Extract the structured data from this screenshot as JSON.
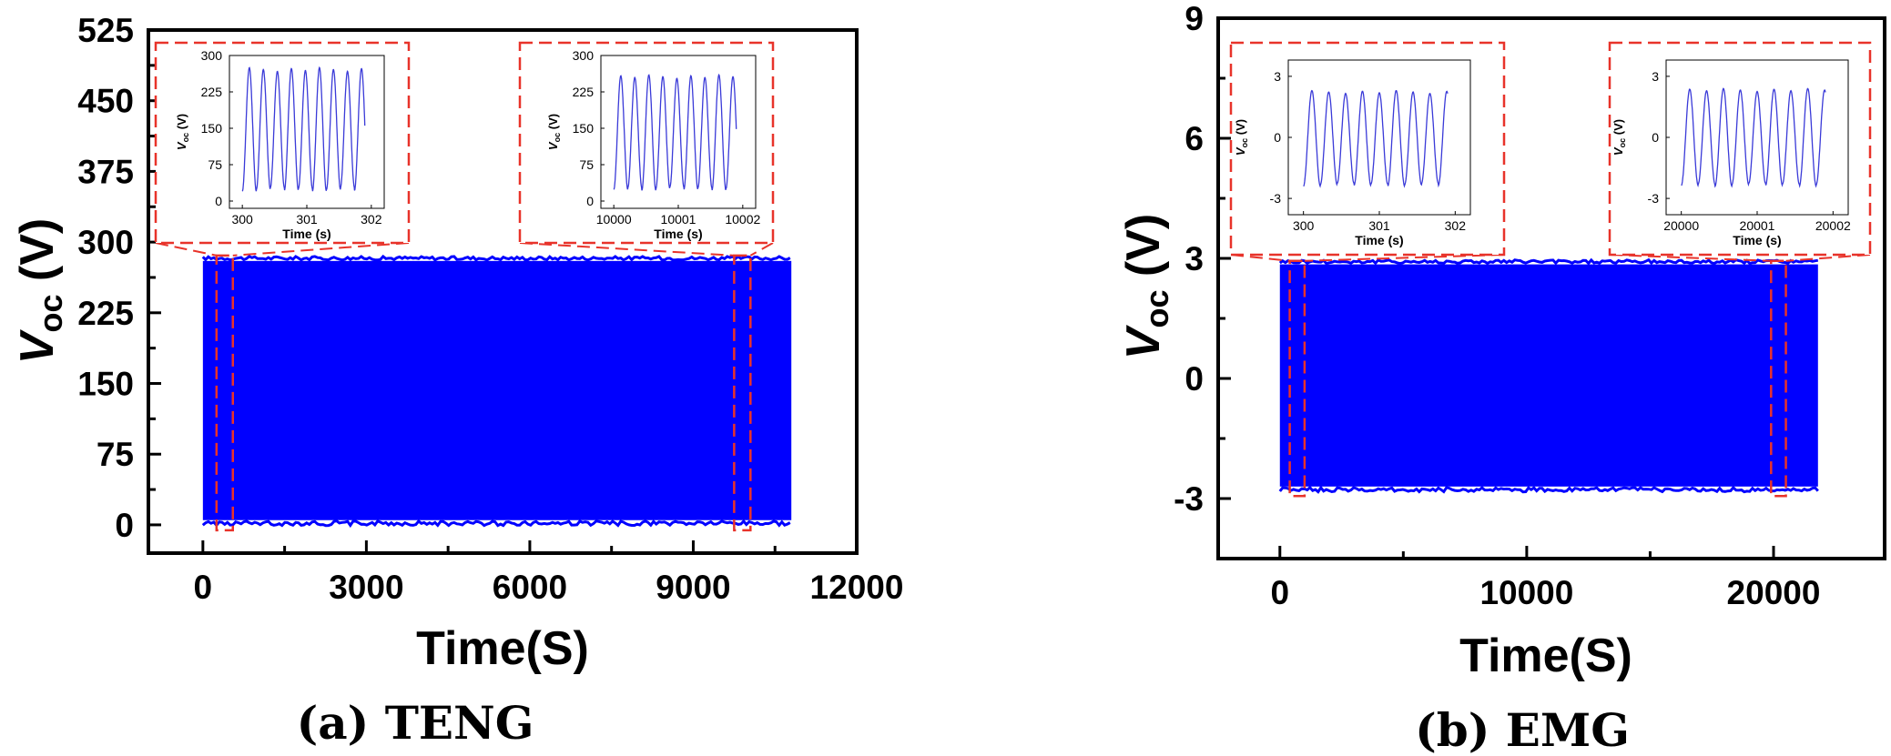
{
  "colors": {
    "signal": "#0000ff",
    "inset_line": "#3a3ad8",
    "zoom_box": "#e8332a",
    "axis": "#000000"
  },
  "chart_data": [
    {
      "type": "line",
      "panel": "a",
      "caption": "(a) TENG",
      "xlabel": "Time(S)",
      "ylabel_main": "V",
      "ylabel_sub": "oc",
      "ylabel_unit": " (V)",
      "xlim": [
        -1000,
        12000
      ],
      "ylim": [
        -30,
        525
      ],
      "xticks": [
        0,
        3000,
        6000,
        9000,
        12000
      ],
      "xtick_labels": [
        "0",
        "3000",
        "6000",
        "9000",
        "12000"
      ],
      "yticks": [
        0,
        75,
        150,
        225,
        300,
        375,
        450,
        525
      ],
      "ytick_labels": [
        "0",
        "75",
        "150",
        "225",
        "300",
        "375",
        "450",
        "525"
      ],
      "signal": {
        "x_start": 0,
        "x_end": 10800,
        "y_min": 5,
        "y_max": 280
      },
      "zoom_regions": [
        {
          "x_from": 250,
          "x_to": 550,
          "y_from": 0,
          "y_to": 280
        },
        {
          "x_from": 9750,
          "x_to": 10050,
          "y_from": 0,
          "y_to": 280
        }
      ],
      "insets": [
        {
          "xlim": [
            299.8,
            302.2
          ],
          "ylim": [
            -15,
            300
          ],
          "xticks": [
            300,
            301,
            302
          ],
          "xtick_labels": [
            "300",
            "301",
            "302"
          ],
          "yticks": [
            0,
            75,
            150,
            225,
            300
          ],
          "ytick_labels": [
            "0",
            "75",
            "150",
            "225",
            "300"
          ],
          "xlabel": "Time (s)",
          "ylabel_main": "V",
          "ylabel_sub": "oc",
          "ylabel_unit": " (V)",
          "wave": {
            "t_start": 300,
            "t_end": 301.9,
            "frequency_hz": 4.6,
            "min": 20,
            "max": 275
          }
        },
        {
          "xlim": [
            9999.8,
            10002.2
          ],
          "ylim": [
            -15,
            300
          ],
          "xticks": [
            10000,
            10001,
            10002
          ],
          "xtick_labels": [
            "10000",
            "10001",
            "10002"
          ],
          "yticks": [
            0,
            75,
            150,
            225,
            300
          ],
          "ytick_labels": [
            "0",
            "75",
            "150",
            "225",
            "300"
          ],
          "xlabel": "Time (s)",
          "ylabel_main": "V",
          "ylabel_sub": "oc",
          "ylabel_unit": " (V)",
          "wave": {
            "t_start": 10000,
            "t_end": 10001.9,
            "frequency_hz": 4.6,
            "min": 22,
            "max": 260
          }
        }
      ]
    },
    {
      "type": "line",
      "panel": "b",
      "caption": "(b) EMG",
      "xlabel": "Time(S)",
      "ylabel_main": "V",
      "ylabel_sub": "oc",
      "ylabel_unit": " (V)",
      "xlim": [
        -2500,
        24500
      ],
      "ylim": [
        -4.5,
        9
      ],
      "xticks": [
        0,
        10000,
        20000
      ],
      "xtick_labels": [
        "0",
        "10000",
        "20000"
      ],
      "yticks": [
        -3,
        0,
        3,
        6,
        9
      ],
      "ytick_labels": [
        "-3",
        "0",
        "3",
        "6",
        "9"
      ],
      "signal": {
        "x_start": 0,
        "x_end": 21800,
        "y_min": -2.7,
        "y_max": 2.85
      },
      "zoom_regions": [
        {
          "x_from": 400,
          "x_to": 1000,
          "y_from": -2.8,
          "y_to": 2.8
        },
        {
          "x_from": 19900,
          "x_to": 20500,
          "y_from": -2.8,
          "y_to": 2.8
        }
      ],
      "insets": [
        {
          "xlim": [
            299.8,
            302.2
          ],
          "ylim": [
            -3.8,
            3.8
          ],
          "xticks": [
            300,
            301,
            302
          ],
          "xtick_labels": [
            "300",
            "301",
            "302"
          ],
          "yticks": [
            -3,
            0,
            3
          ],
          "ytick_labels": [
            "-3",
            "0",
            "3"
          ],
          "xlabel": "Time (s)",
          "ylabel_main": "V",
          "ylabel_sub": "oc",
          "ylabel_unit": " (V)",
          "wave": {
            "t_start": 300,
            "t_end": 301.9,
            "frequency_hz": 4.5,
            "min": -2.4,
            "max": 2.3
          }
        },
        {
          "xlim": [
            19999.8,
            20002.2
          ],
          "ylim": [
            -3.8,
            3.8
          ],
          "xticks": [
            20000,
            20001,
            20002
          ],
          "xtick_labels": [
            "20000",
            "20001",
            "20002"
          ],
          "yticks": [
            -3,
            0,
            3
          ],
          "ytick_labels": [
            "-3",
            "0",
            "3"
          ],
          "xlabel": "Time (s)",
          "ylabel_main": "V",
          "ylabel_sub": "oc",
          "ylabel_unit": " (V)",
          "wave": {
            "t_start": 20000,
            "t_end": 20001.9,
            "frequency_hz": 4.5,
            "min": -2.4,
            "max": 2.4
          }
        }
      ]
    }
  ]
}
